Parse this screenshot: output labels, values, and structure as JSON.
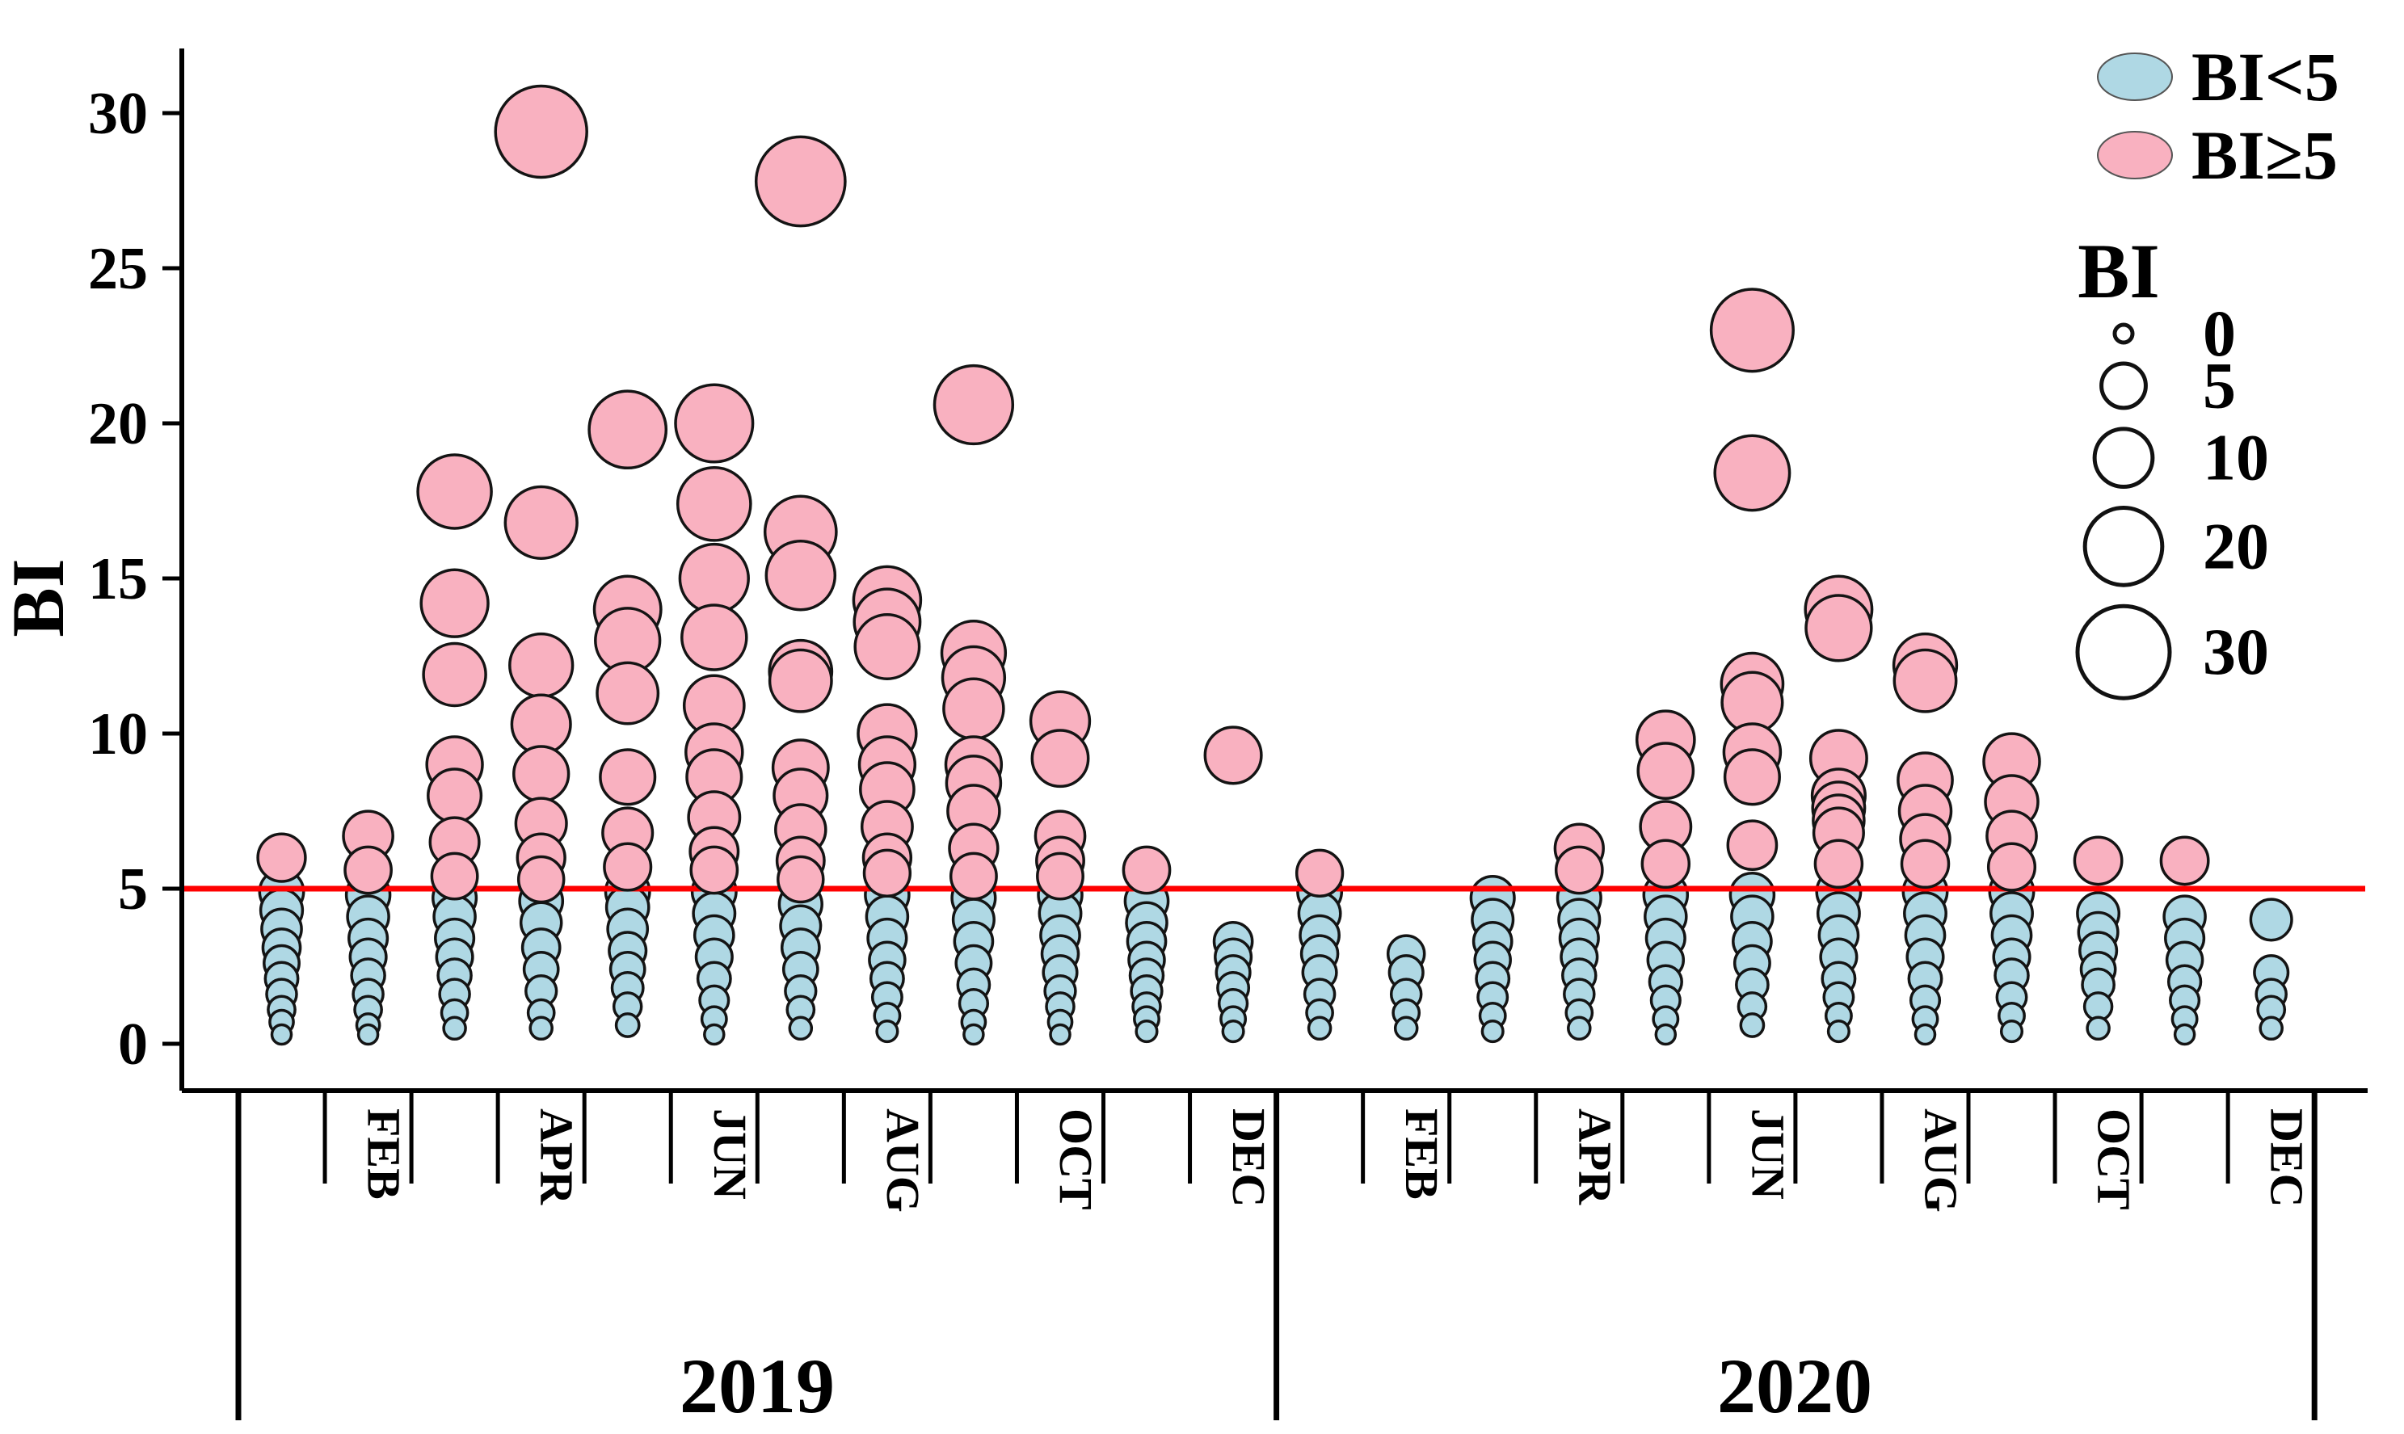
{
  "colors": {
    "blue": "#AFD8E4",
    "pink": "#F9B1C0",
    "threshold_line": "#FF0000",
    "bubble_stroke": "#141414",
    "axis": "#000000"
  },
  "legend": {
    "color_items": [
      {
        "label": "BI<5",
        "color_key": "blue"
      },
      {
        "label": "BI≥5",
        "color_key": "pink"
      }
    ],
    "size_title": "BI",
    "size_items": [
      {
        "label": "0",
        "bi": 0
      },
      {
        "label": "5",
        "bi": 5
      },
      {
        "label": "10",
        "bi": 10
      },
      {
        "label": "20",
        "bi": 20
      },
      {
        "label": "30",
        "bi": 30
      }
    ]
  },
  "axes": {
    "y_label": "BI",
    "y_ticks": [
      0,
      5,
      10,
      15,
      20,
      25,
      30
    ],
    "y_range": [
      0,
      30
    ],
    "threshold_value": 5,
    "labeled_months": [
      "FEB",
      "APR",
      "JUN",
      "AUG",
      "OCT",
      "DEC"
    ],
    "year_labels": [
      "2019",
      "2020"
    ]
  },
  "chart_data": {
    "type": "scatter",
    "subtype": "bubble-strip",
    "title": "",
    "xlabel": "",
    "ylabel": "BI",
    "ylim": [
      0,
      30
    ],
    "grid": false,
    "legend_position": "top-right",
    "note": "Each bubble is one observation; y = BI value, bubble size scales with BI, pink when BI >= 5, blue when BI < 5, red reference line at BI = 5",
    "threshold": 5,
    "series": [
      {
        "year": "2019",
        "months": [
          {
            "month": "JAN",
            "values": [
              6.0,
              4.9,
              4.3,
              3.7,
              3.1,
              2.6,
              2.1,
              1.6,
              1.1,
              0.7,
              0.3
            ]
          },
          {
            "month": "FEB",
            "values": [
              6.7,
              5.6,
              4.8,
              4.1,
              3.4,
              2.8,
              2.2,
              1.6,
              1.1,
              0.6,
              0.3
            ]
          },
          {
            "month": "MAR",
            "values": [
              17.8,
              14.2,
              11.9,
              9.0,
              8.0,
              6.5,
              5.4,
              4.7,
              4.1,
              3.4,
              2.8,
              2.2,
              1.6,
              1.0,
              0.5
            ]
          },
          {
            "month": "APR",
            "values": [
              29.4,
              16.8,
              12.2,
              10.3,
              8.7,
              7.1,
              6.0,
              5.3,
              4.6,
              3.9,
              3.1,
              2.4,
              1.7,
              1.0,
              0.5
            ]
          },
          {
            "month": "MAY",
            "values": [
              19.8,
              14.0,
              13.0,
              11.3,
              8.6,
              6.8,
              5.7,
              4.9,
              4.4,
              3.7,
              3.0,
              2.4,
              1.8,
              1.2,
              0.6
            ]
          },
          {
            "month": "JUN",
            "values": [
              20.0,
              17.4,
              15.0,
              13.1,
              10.9,
              9.4,
              8.6,
              7.3,
              6.2,
              5.6,
              4.9,
              4.2,
              3.5,
              2.8,
              2.1,
              1.4,
              0.8,
              0.3
            ]
          },
          {
            "month": "JUL",
            "values": [
              27.8,
              16.5,
              15.1,
              12.0,
              11.7,
              8.9,
              8.0,
              6.9,
              5.9,
              5.3,
              4.5,
              3.8,
              3.1,
              2.4,
              1.7,
              1.1,
              0.5
            ]
          },
          {
            "month": "AUG",
            "values": [
              14.3,
              13.6,
              12.8,
              10.0,
              9.0,
              8.2,
              7.0,
              6.0,
              5.5,
              4.8,
              4.1,
              3.4,
              2.7,
              2.1,
              1.5,
              0.9,
              0.4
            ]
          },
          {
            "month": "SEP",
            "values": [
              20.6,
              12.6,
              11.8,
              10.8,
              9.0,
              8.4,
              7.5,
              6.3,
              5.4,
              4.7,
              4.0,
              3.3,
              2.6,
              1.9,
              1.3,
              0.7,
              0.3
            ]
          },
          {
            "month": "OCT",
            "values": [
              10.4,
              9.2,
              6.7,
              5.9,
              5.4,
              4.8,
              4.2,
              3.5,
              2.9,
              2.3,
              1.7,
              1.2,
              0.7,
              0.3
            ]
          },
          {
            "month": "NOV",
            "values": [
              5.6,
              4.6,
              3.9,
              3.3,
              2.7,
              2.2,
              1.7,
              1.2,
              0.8,
              0.4
            ]
          },
          {
            "month": "DEC",
            "values": [
              9.3,
              3.3,
              2.8,
              2.3,
              1.8,
              1.3,
              0.8,
              0.4
            ]
          }
        ]
      },
      {
        "year": "2020",
        "months": [
          {
            "month": "JAN",
            "values": [
              5.5,
              4.9,
              4.2,
              3.5,
              2.9,
              2.3,
              1.6,
              1.0,
              0.5
            ]
          },
          {
            "month": "FEB",
            "values": [
              2.9,
              2.3,
              1.6,
              1.0,
              0.5
            ]
          },
          {
            "month": "MAR",
            "values": [
              4.7,
              4.0,
              3.3,
              2.7,
              2.1,
              1.5,
              0.9,
              0.4
            ]
          },
          {
            "month": "APR",
            "values": [
              6.3,
              5.6,
              4.7,
              4.0,
              3.4,
              2.8,
              2.2,
              1.6,
              1.0,
              0.5
            ]
          },
          {
            "month": "MAY",
            "values": [
              9.8,
              8.8,
              7.0,
              5.8,
              4.8,
              4.1,
              3.4,
              2.7,
              2.0,
              1.4,
              0.8,
              0.3
            ]
          },
          {
            "month": "JUN",
            "values": [
              23.0,
              18.4,
              11.6,
              11.0,
              9.4,
              8.6,
              6.4,
              4.8,
              4.1,
              3.3,
              2.6,
              1.9,
              1.2,
              0.6
            ]
          },
          {
            "month": "JUL",
            "values": [
              14.0,
              13.4,
              9.2,
              8.0,
              7.6,
              7.2,
              6.8,
              5.8,
              4.9,
              4.2,
              3.5,
              2.8,
              2.1,
              1.5,
              0.9,
              0.4
            ]
          },
          {
            "month": "AUG",
            "values": [
              12.2,
              11.7,
              8.5,
              7.5,
              6.6,
              5.8,
              4.9,
              4.2,
              3.5,
              2.8,
              2.1,
              1.4,
              0.8,
              0.3
            ]
          },
          {
            "month": "SEP",
            "values": [
              9.1,
              7.8,
              6.7,
              5.7,
              4.9,
              4.2,
              3.5,
              2.8,
              2.2,
              1.5,
              0.9,
              0.4
            ]
          },
          {
            "month": "OCT",
            "values": [
              5.9,
              4.2,
              3.6,
              3.0,
              2.4,
              1.9,
              1.2,
              0.5
            ]
          },
          {
            "month": "NOV",
            "values": [
              5.9,
              4.1,
              3.4,
              2.7,
              2.0,
              1.4,
              0.8,
              0.3
            ]
          },
          {
            "month": "DEC",
            "values": [
              4.0,
              2.3,
              1.6,
              1.1,
              0.5
            ]
          }
        ]
      }
    ]
  }
}
